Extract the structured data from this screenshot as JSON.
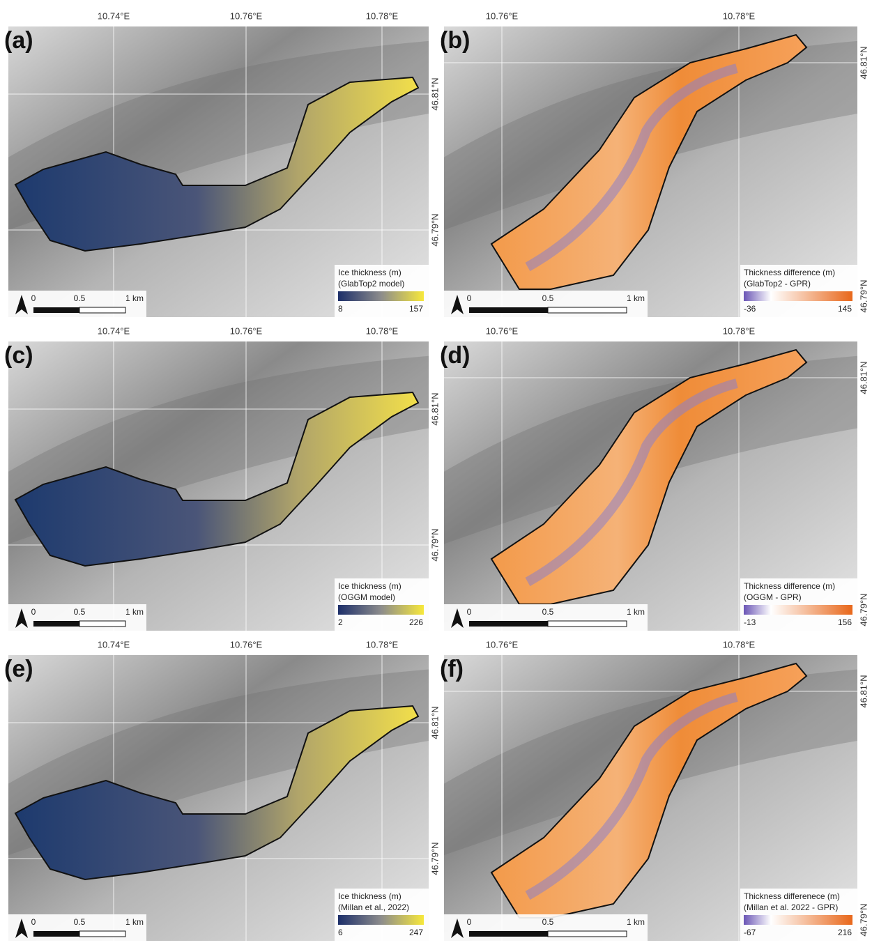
{
  "panels": [
    {
      "label": "(a)",
      "x_labels": [
        "10.74°E",
        "10.76°E",
        "10.78°E"
      ],
      "y_labels": [
        "46.81°N",
        "46.79°N"
      ],
      "legend": {
        "title": "Ice thickness (m)",
        "subtitle": "(GlabTop2 model)",
        "min": 8,
        "max": 157
      },
      "scale": [
        "0",
        "0.5",
        "1 km"
      ]
    },
    {
      "label": "(b)",
      "x_labels": [
        "10.76°E",
        "10.78°E"
      ],
      "y_labels": [
        "46.81°N",
        "46.79°N"
      ],
      "legend": {
        "title": "Thickness difference (m)",
        "subtitle": "(GlabTop2 - GPR)",
        "min": -36,
        "max": 145
      },
      "scale": [
        "0",
        "0.5",
        "1 km"
      ]
    },
    {
      "label": "(c)",
      "x_labels": [
        "10.74°E",
        "10.76°E",
        "10.78°E"
      ],
      "y_labels": [
        "46.81°N",
        "46.79°N"
      ],
      "legend": {
        "title": "Ice thickness (m)",
        "subtitle": "(OGGM model)",
        "min": 2,
        "max": 226
      },
      "scale": [
        "0",
        "0.5",
        "1 km"
      ]
    },
    {
      "label": "(d)",
      "x_labels": [
        "10.76°E",
        "10.78°E"
      ],
      "y_labels": [
        "46.81°N",
        "46.79°N"
      ],
      "legend": {
        "title": "Thickness difference (m)",
        "subtitle": "(OGGM - GPR)",
        "min": -13,
        "max": 156
      },
      "scale": [
        "0",
        "0.5",
        "1 km"
      ]
    },
    {
      "label": "(e)",
      "x_labels": [
        "10.74°E",
        "10.76°E",
        "10.78°E"
      ],
      "y_labels": [
        "46.81°N",
        "46.79°N"
      ],
      "legend": {
        "title": "Ice thickness (m)",
        "subtitle": "(Millan et al., 2022)",
        "min": 6,
        "max": 247
      },
      "scale": [
        "0",
        "0.5",
        "1 km"
      ]
    },
    {
      "label": "(f)",
      "x_labels": [
        "10.76°E",
        "10.78°E"
      ],
      "y_labels": [
        "46.81°N",
        "46.79°N"
      ],
      "legend": {
        "title": "Thickness differenece (m)",
        "subtitle": "(Millan et al.  2022 - GPR)",
        "min": -67,
        "max": 216
      },
      "scale": [
        "0",
        "0.5",
        "1 km"
      ]
    }
  ]
}
